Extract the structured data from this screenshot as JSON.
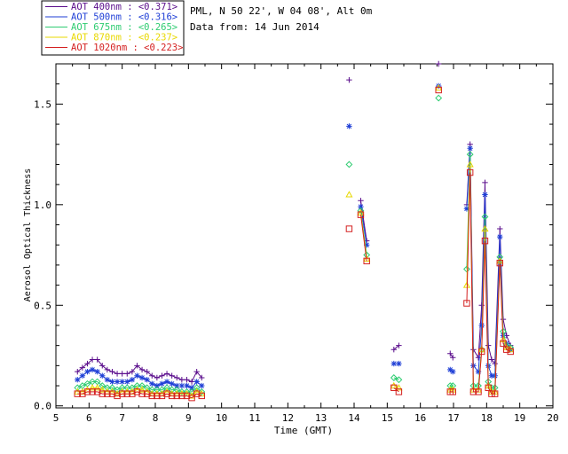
{
  "chart_data": {
    "type": "scatter",
    "info_line1": "PML, N 50 22', W 04 08', Alt 0m",
    "info_line2": "Data from: 14 Jun 2014",
    "xlabel": "Time (GMT)",
    "ylabel": "Aerosol Optical Thickness",
    "xlim": [
      5,
      20
    ],
    "ylim": [
      -0.01,
      1.7
    ],
    "xticks": [
      5,
      6,
      7,
      8,
      9,
      10,
      11,
      12,
      13,
      14,
      15,
      16,
      17,
      18,
      19,
      20
    ],
    "yticks": [
      0.0,
      0.5,
      1.0,
      1.5
    ],
    "ytick_labels": [
      "0.0",
      "0.5",
      "1.0",
      "1.5"
    ],
    "x": [
      5.65,
      5.8,
      5.95,
      6.1,
      6.25,
      6.4,
      6.55,
      6.7,
      6.85,
      7.0,
      7.15,
      7.3,
      7.45,
      7.6,
      7.75,
      7.9,
      8.05,
      8.2,
      8.35,
      8.5,
      8.65,
      8.8,
      8.95,
      9.1,
      9.25,
      9.4,
      13.85,
      14.2,
      14.38,
      15.2,
      15.35,
      16.55,
      16.9,
      16.98,
      17.4,
      17.5,
      17.6,
      17.75,
      17.85,
      17.95,
      18.05,
      18.15,
      18.25,
      18.4,
      18.5,
      18.6,
      18.72
    ],
    "series": [
      {
        "name": "AOT  400nm",
        "legend_label": "AOT  400nm : <0.371>",
        "color": "#5a0d8c",
        "marker": "plus",
        "values": [
          0.17,
          0.19,
          0.21,
          0.23,
          0.23,
          0.2,
          0.18,
          0.17,
          0.16,
          0.16,
          0.16,
          0.17,
          0.2,
          0.18,
          0.17,
          0.15,
          0.14,
          0.15,
          0.16,
          0.15,
          0.14,
          0.13,
          0.13,
          0.12,
          0.17,
          0.14,
          1.62,
          1.02,
          0.82,
          0.28,
          0.3,
          1.7,
          0.26,
          0.24,
          1.0,
          1.3,
          0.28,
          0.24,
          0.5,
          1.11,
          0.3,
          0.23,
          0.21,
          0.88,
          0.43,
          0.35,
          0.3
        ]
      },
      {
        "name": "AOT  500nm",
        "legend_label": "AOT  500nm : <0.316>",
        "color": "#1f3fd6",
        "marker": "star",
        "values": [
          0.13,
          0.15,
          0.17,
          0.18,
          0.17,
          0.15,
          0.13,
          0.12,
          0.12,
          0.12,
          0.12,
          0.13,
          0.15,
          0.14,
          0.13,
          0.11,
          0.1,
          0.11,
          0.12,
          0.11,
          0.1,
          0.1,
          0.1,
          0.09,
          0.12,
          0.1,
          1.39,
          0.99,
          0.8,
          0.21,
          0.21,
          1.59,
          0.18,
          0.17,
          0.98,
          1.28,
          0.2,
          0.17,
          0.4,
          1.05,
          0.2,
          0.15,
          0.15,
          0.84,
          0.35,
          0.31,
          0.28
        ]
      },
      {
        "name": "AOT  675nm",
        "legend_label": "AOT  675nm : <0.265>",
        "color": "#2ecc71",
        "marker": "diamond",
        "values": [
          0.09,
          0.1,
          0.11,
          0.12,
          0.12,
          0.1,
          0.09,
          0.09,
          0.08,
          0.09,
          0.09,
          0.09,
          0.1,
          0.1,
          0.09,
          0.08,
          0.08,
          0.08,
          0.09,
          0.08,
          0.08,
          0.07,
          0.07,
          0.07,
          0.09,
          0.07,
          1.2,
          0.97,
          0.75,
          0.14,
          0.13,
          1.53,
          0.1,
          0.1,
          0.68,
          1.25,
          0.1,
          0.1,
          0.28,
          0.94,
          0.12,
          0.09,
          0.09,
          0.74,
          0.37,
          0.3,
          0.29
        ]
      },
      {
        "name": "AOT  870nm",
        "legend_label": "AOT  870nm : <0.237>",
        "color": "#e8d800",
        "marker": "triangle",
        "values": [
          0.07,
          0.07,
          0.08,
          0.09,
          0.09,
          0.08,
          0.07,
          0.07,
          0.06,
          0.07,
          0.07,
          0.07,
          0.08,
          0.08,
          0.07,
          0.06,
          0.06,
          0.06,
          0.07,
          0.06,
          0.06,
          0.06,
          0.06,
          0.05,
          0.07,
          0.06,
          1.05,
          0.96,
          0.73,
          0.1,
          0.09,
          1.58,
          0.08,
          0.08,
          0.6,
          1.2,
          0.08,
          0.08,
          0.28,
          0.88,
          0.1,
          0.07,
          0.07,
          0.72,
          0.33,
          0.29,
          0.28
        ]
      },
      {
        "name": "AOT 1020nm",
        "legend_label": "AOT 1020nm : <0.223>",
        "color": "#d42020",
        "marker": "square",
        "values": [
          0.06,
          0.06,
          0.07,
          0.07,
          0.07,
          0.06,
          0.06,
          0.06,
          0.05,
          0.06,
          0.06,
          0.06,
          0.07,
          0.06,
          0.06,
          0.05,
          0.05,
          0.05,
          0.06,
          0.05,
          0.05,
          0.05,
          0.05,
          0.04,
          0.06,
          0.05,
          0.88,
          0.95,
          0.72,
          0.09,
          0.07,
          1.57,
          0.07,
          0.07,
          0.51,
          1.16,
          0.07,
          0.07,
          0.27,
          0.82,
          0.09,
          0.06,
          0.06,
          0.71,
          0.31,
          0.28,
          0.27
        ]
      }
    ],
    "legend_position": "top-left"
  }
}
